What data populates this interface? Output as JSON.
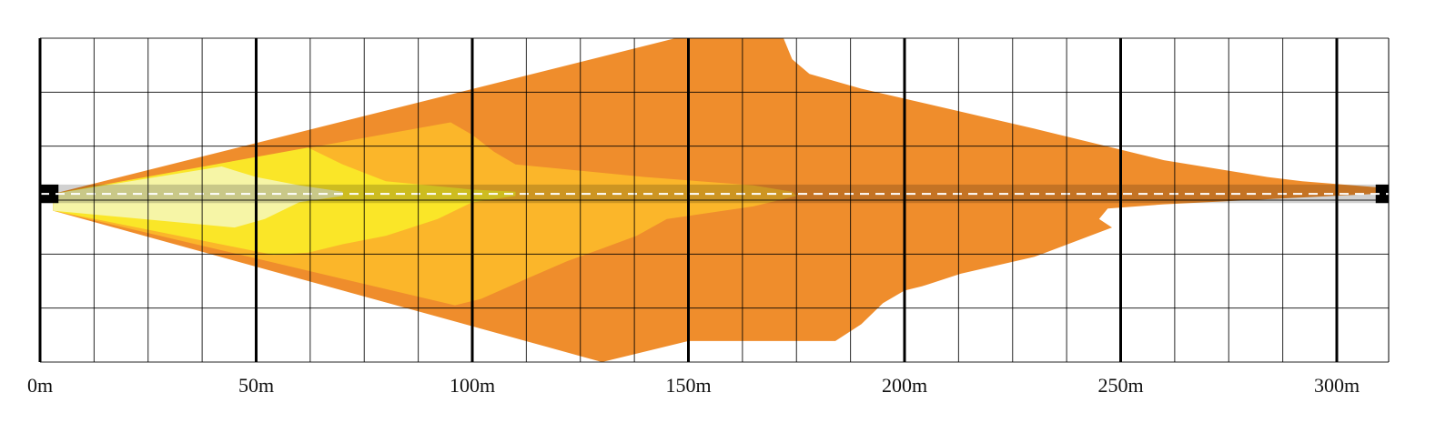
{
  "chart_data": {
    "type": "area",
    "title": "",
    "xlabel": "",
    "ylabel": "",
    "xlim": [
      0,
      312
    ],
    "ylim": [
      -40,
      37
    ],
    "x_unit": "m",
    "x_ticks": [
      {
        "value": 0,
        "label": "0m"
      },
      {
        "value": 50,
        "label": "50m"
      },
      {
        "value": 100,
        "label": "100m"
      },
      {
        "value": 150,
        "label": "150m"
      },
      {
        "value": 200,
        "label": "200m"
      },
      {
        "value": 250,
        "label": "250m"
      },
      {
        "value": 300,
        "label": "300m"
      }
    ],
    "grid": true,
    "grid_minor_step": 12.5,
    "grid_major_step": 50,
    "road_band": {
      "half_width": 2.2,
      "color": "#000000"
    },
    "centerline": {
      "style": "dashed",
      "color": "#ffffff"
    },
    "series": [
      {
        "color": "#ef8d2c",
        "outline": [
          [
            3,
            0
          ],
          [
            147,
            37
          ],
          [
            172,
            37
          ],
          [
            174,
            32
          ],
          [
            178,
            28.5
          ],
          [
            190,
            25
          ],
          [
            230,
            15.5
          ],
          [
            260,
            8
          ],
          [
            284,
            4
          ],
          [
            292,
            3
          ],
          [
            310,
            1.5
          ],
          [
            309,
            0
          ],
          [
            260,
            -2.5
          ],
          [
            247,
            -3.5
          ],
          [
            245,
            -6
          ],
          [
            248,
            -8
          ],
          [
            230,
            -15
          ],
          [
            213,
            -19
          ],
          [
            204,
            -22
          ],
          [
            200,
            -23
          ],
          [
            195,
            -26
          ],
          [
            190,
            -31
          ],
          [
            184,
            -35
          ],
          [
            150,
            -35
          ],
          [
            130,
            -40
          ],
          [
            3,
            -4
          ]
        ]
      },
      {
        "color": "#fbb62a",
        "outline": [
          [
            3,
            0
          ],
          [
            95,
            17
          ],
          [
            100,
            14
          ],
          [
            105,
            10
          ],
          [
            110,
            7
          ],
          [
            140,
            4
          ],
          [
            165,
            2
          ],
          [
            174,
            0.5
          ],
          [
            175,
            -0.5
          ],
          [
            165,
            -3
          ],
          [
            145,
            -6
          ],
          [
            138,
            -10
          ],
          [
            130,
            -13
          ],
          [
            122,
            -16
          ],
          [
            113,
            -20
          ],
          [
            102,
            -25
          ],
          [
            96,
            -26.5
          ],
          [
            3,
            -4
          ]
        ]
      },
      {
        "color": "#fae628",
        "outline": [
          [
            3,
            0
          ],
          [
            62,
            11
          ],
          [
            66,
            9
          ],
          [
            70,
            7
          ],
          [
            80,
            3
          ],
          [
            100,
            1
          ],
          [
            110,
            0.5
          ],
          [
            110,
            -0.5
          ],
          [
            100,
            -2
          ],
          [
            92,
            -6
          ],
          [
            80,
            -10
          ],
          [
            70,
            -12
          ],
          [
            62,
            -14
          ],
          [
            54,
            -14.5
          ],
          [
            3,
            -4
          ]
        ]
      },
      {
        "color": "#f6f5a6",
        "outline": [
          [
            3,
            0
          ],
          [
            42,
            6.5
          ],
          [
            50,
            4
          ],
          [
            60,
            2
          ],
          [
            70,
            0.5
          ],
          [
            70,
            -0.5
          ],
          [
            60,
            -2
          ],
          [
            52,
            -6
          ],
          [
            45,
            -8
          ],
          [
            3,
            -4
          ]
        ]
      }
    ]
  }
}
